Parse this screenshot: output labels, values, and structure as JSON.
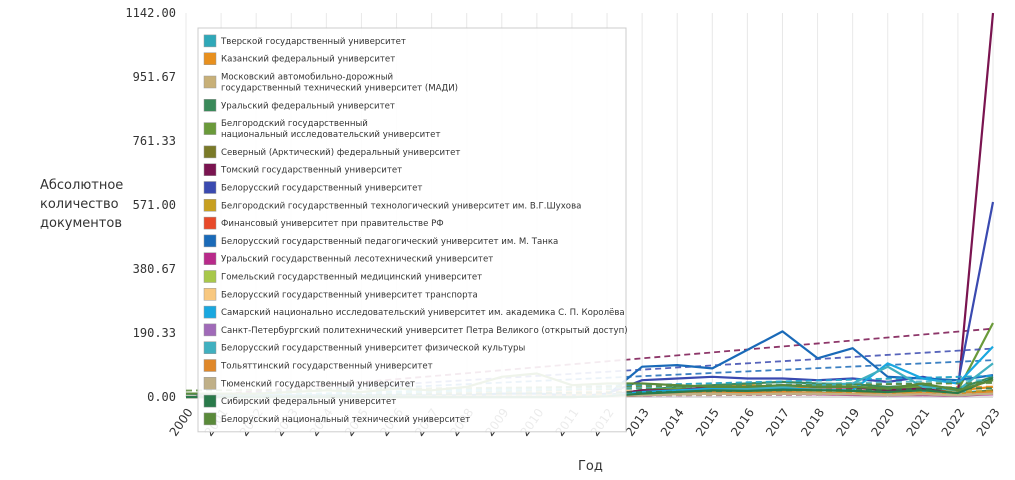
{
  "chart_data": {
    "type": "line",
    "ylabel": "Абсолютное количество документов",
    "xlabel": "Год",
    "x": [
      "2000",
      "2001",
      "2002",
      "2003",
      "2004",
      "2005",
      "2006",
      "2007",
      "2008",
      "2009",
      "2010",
      "2011",
      "2012",
      "2013",
      "2014",
      "2015",
      "2016",
      "2017",
      "2018",
      "2019",
      "2020",
      "2021",
      "2022",
      "2023"
    ],
    "y_ticks": [
      "0.00",
      "190.33",
      "380.67",
      "571.00",
      "761.33",
      "951.67",
      "1142.00"
    ],
    "ylim": [
      0,
      1142
    ],
    "grid": "vertical",
    "legend_placement": "top-left",
    "series": [
      {
        "name": "Тверской государственный университет",
        "color": "#2fa8b8",
        "values": [
          0,
          0,
          0,
          0,
          0,
          0,
          0,
          0,
          0,
          0,
          0,
          0,
          5,
          8,
          10,
          12,
          12,
          14,
          12,
          10,
          8,
          15,
          12,
          20
        ]
      },
      {
        "name": "Казанский федеральный университет",
        "color": "#e8901e",
        "values": [
          0,
          0,
          0,
          0,
          0,
          0,
          0,
          0,
          0,
          0,
          0,
          0,
          5,
          15,
          20,
          30,
          35,
          30,
          28,
          30,
          25,
          22,
          20,
          30
        ]
      },
      {
        "name": "Московский автомобильно-дорожный\nгосударственный технический университет (МАДИ)",
        "color": "#c8b078",
        "values": [
          0,
          0,
          0,
          0,
          0,
          0,
          0,
          0,
          0,
          0,
          0,
          0,
          2,
          10,
          15,
          20,
          22,
          25,
          20,
          18,
          15,
          12,
          10,
          15
        ]
      },
      {
        "name": "Уральский федеральный университет",
        "color": "#3a8a5a",
        "values": [
          0,
          0,
          0,
          0,
          0,
          0,
          0,
          0,
          0,
          0,
          0,
          0,
          5,
          20,
          30,
          35,
          40,
          45,
          40,
          38,
          30,
          35,
          25,
          60
        ]
      },
      {
        "name": "Белгородский государственный\nнациональный исследовательский университет",
        "color": "#6a9a3a",
        "values": [
          0,
          0,
          0,
          0,
          0,
          0,
          0,
          0,
          0,
          0,
          0,
          0,
          5,
          20,
          25,
          25,
          30,
          30,
          35,
          30,
          25,
          30,
          20,
          220
        ]
      },
      {
        "name": "Северный (Арктический) федеральный университет",
        "color": "#7a7a28",
        "values": [
          0,
          0,
          0,
          0,
          0,
          0,
          0,
          0,
          0,
          0,
          0,
          0,
          2,
          5,
          8,
          10,
          12,
          15,
          12,
          10,
          8,
          10,
          8,
          20
        ]
      },
      {
        "name": "Томский государственный университет",
        "color": "#7a1450",
        "values": [
          0,
          0,
          0,
          0,
          0,
          0,
          0,
          0,
          0,
          0,
          0,
          0,
          5,
          20,
          20,
          30,
          25,
          35,
          30,
          28,
          20,
          25,
          10,
          1142
        ]
      },
      {
        "name": "Белорусский государственный университет",
        "color": "#3a4ab0",
        "values": [
          0,
          0,
          0,
          0,
          0,
          0,
          0,
          0,
          0,
          0,
          0,
          0,
          10,
          50,
          55,
          60,
          55,
          55,
          50,
          55,
          45,
          60,
          40,
          580
        ]
      },
      {
        "name": "Белгородский государственный технологический университет им. В.Г.Шухова",
        "color": "#c8a020",
        "values": [
          0,
          0,
          0,
          0,
          0,
          0,
          0,
          0,
          0,
          0,
          0,
          0,
          2,
          8,
          15,
          20,
          18,
          22,
          20,
          18,
          12,
          10,
          8,
          15
        ]
      },
      {
        "name": "Финансовый университет при правительстве РФ",
        "color": "#e84a2a",
        "values": [
          0,
          0,
          0,
          0,
          0,
          0,
          0,
          0,
          0,
          0,
          0,
          0,
          2,
          8,
          10,
          12,
          10,
          12,
          10,
          8,
          6,
          8,
          5,
          10
        ]
      },
      {
        "name": "Белорусский государственный педагогический университет им. М. Танка",
        "color": "#1a6ab8",
        "values": [
          10,
          8,
          5,
          5,
          5,
          5,
          5,
          5,
          5,
          10,
          10,
          5,
          5,
          90,
          95,
          85,
          140,
          195,
          115,
          145,
          60,
          55,
          50,
          65
        ]
      },
      {
        "name": "Уральский государственный лесотехнический университет",
        "color": "#b82a8a",
        "values": [
          0,
          0,
          0,
          0,
          0,
          0,
          0,
          0,
          0,
          0,
          0,
          0,
          2,
          5,
          8,
          10,
          8,
          10,
          8,
          6,
          5,
          6,
          4,
          8
        ]
      },
      {
        "name": "Гомельский государственный медицинский университет",
        "color": "#a8c84a",
        "values": [
          0,
          0,
          0,
          0,
          0,
          0,
          0,
          0,
          0,
          0,
          0,
          0,
          2,
          6,
          8,
          10,
          8,
          10,
          10,
          8,
          6,
          8,
          6,
          12
        ]
      },
      {
        "name": "Белорусский государственный университет транспорта",
        "color": "#f8c880",
        "values": [
          0,
          0,
          0,
          0,
          0,
          0,
          0,
          0,
          0,
          0,
          0,
          0,
          2,
          8,
          10,
          12,
          10,
          12,
          10,
          8,
          6,
          8,
          5,
          12
        ]
      },
      {
        "name": "Самарский национально исследовательский университет им. академика С. П. Королёва",
        "color": "#1aa8e0",
        "values": [
          0,
          0,
          0,
          0,
          0,
          0,
          0,
          0,
          0,
          0,
          0,
          0,
          5,
          15,
          20,
          25,
          22,
          25,
          22,
          20,
          100,
          55,
          40,
          150
        ]
      },
      {
        "name": "Санкт-Петербургский политехнический университет Петра Великого (открытый доступ)",
        "color": "#a06ab8",
        "values": [
          0,
          0,
          0,
          0,
          0,
          0,
          0,
          0,
          0,
          0,
          0,
          0,
          2,
          8,
          10,
          12,
          10,
          12,
          10,
          8,
          6,
          8,
          5,
          10
        ]
      },
      {
        "name": "Белорусский государственный университет физической культуры",
        "color": "#40b0c0",
        "values": [
          0,
          0,
          0,
          0,
          0,
          0,
          0,
          0,
          0,
          0,
          0,
          0,
          2,
          10,
          15,
          20,
          25,
          30,
          35,
          40,
          90,
          30,
          20,
          100
        ]
      },
      {
        "name": "Тольяттинский государственный университет",
        "color": "#e0882a",
        "values": [
          0,
          0,
          0,
          0,
          0,
          0,
          0,
          0,
          0,
          0,
          0,
          0,
          2,
          8,
          10,
          15,
          12,
          15,
          12,
          10,
          8,
          10,
          6,
          15
        ]
      },
      {
        "name": "Тюменский государственный университет",
        "color": "#c0b088",
        "values": [
          0,
          0,
          0,
          0,
          0,
          0,
          0,
          0,
          0,
          0,
          0,
          0,
          2,
          6,
          8,
          10,
          8,
          10,
          10,
          8,
          6,
          8,
          5,
          10
        ]
      },
      {
        "name": "Сибирский федеральный университет",
        "color": "#2a7a4a",
        "values": [
          0,
          0,
          0,
          0,
          0,
          0,
          0,
          0,
          0,
          0,
          0,
          0,
          2,
          10,
          15,
          20,
          18,
          22,
          20,
          18,
          15,
          20,
          12,
          55
        ]
      },
      {
        "name": "Белорусский национальный технический университет",
        "color": "#5a8a3a",
        "values": [
          10,
          10,
          10,
          15,
          20,
          15,
          25,
          20,
          30,
          60,
          70,
          35,
          40,
          40,
          35,
          30,
          30,
          35,
          30,
          30,
          25,
          40,
          20,
          50
        ]
      }
    ]
  }
}
